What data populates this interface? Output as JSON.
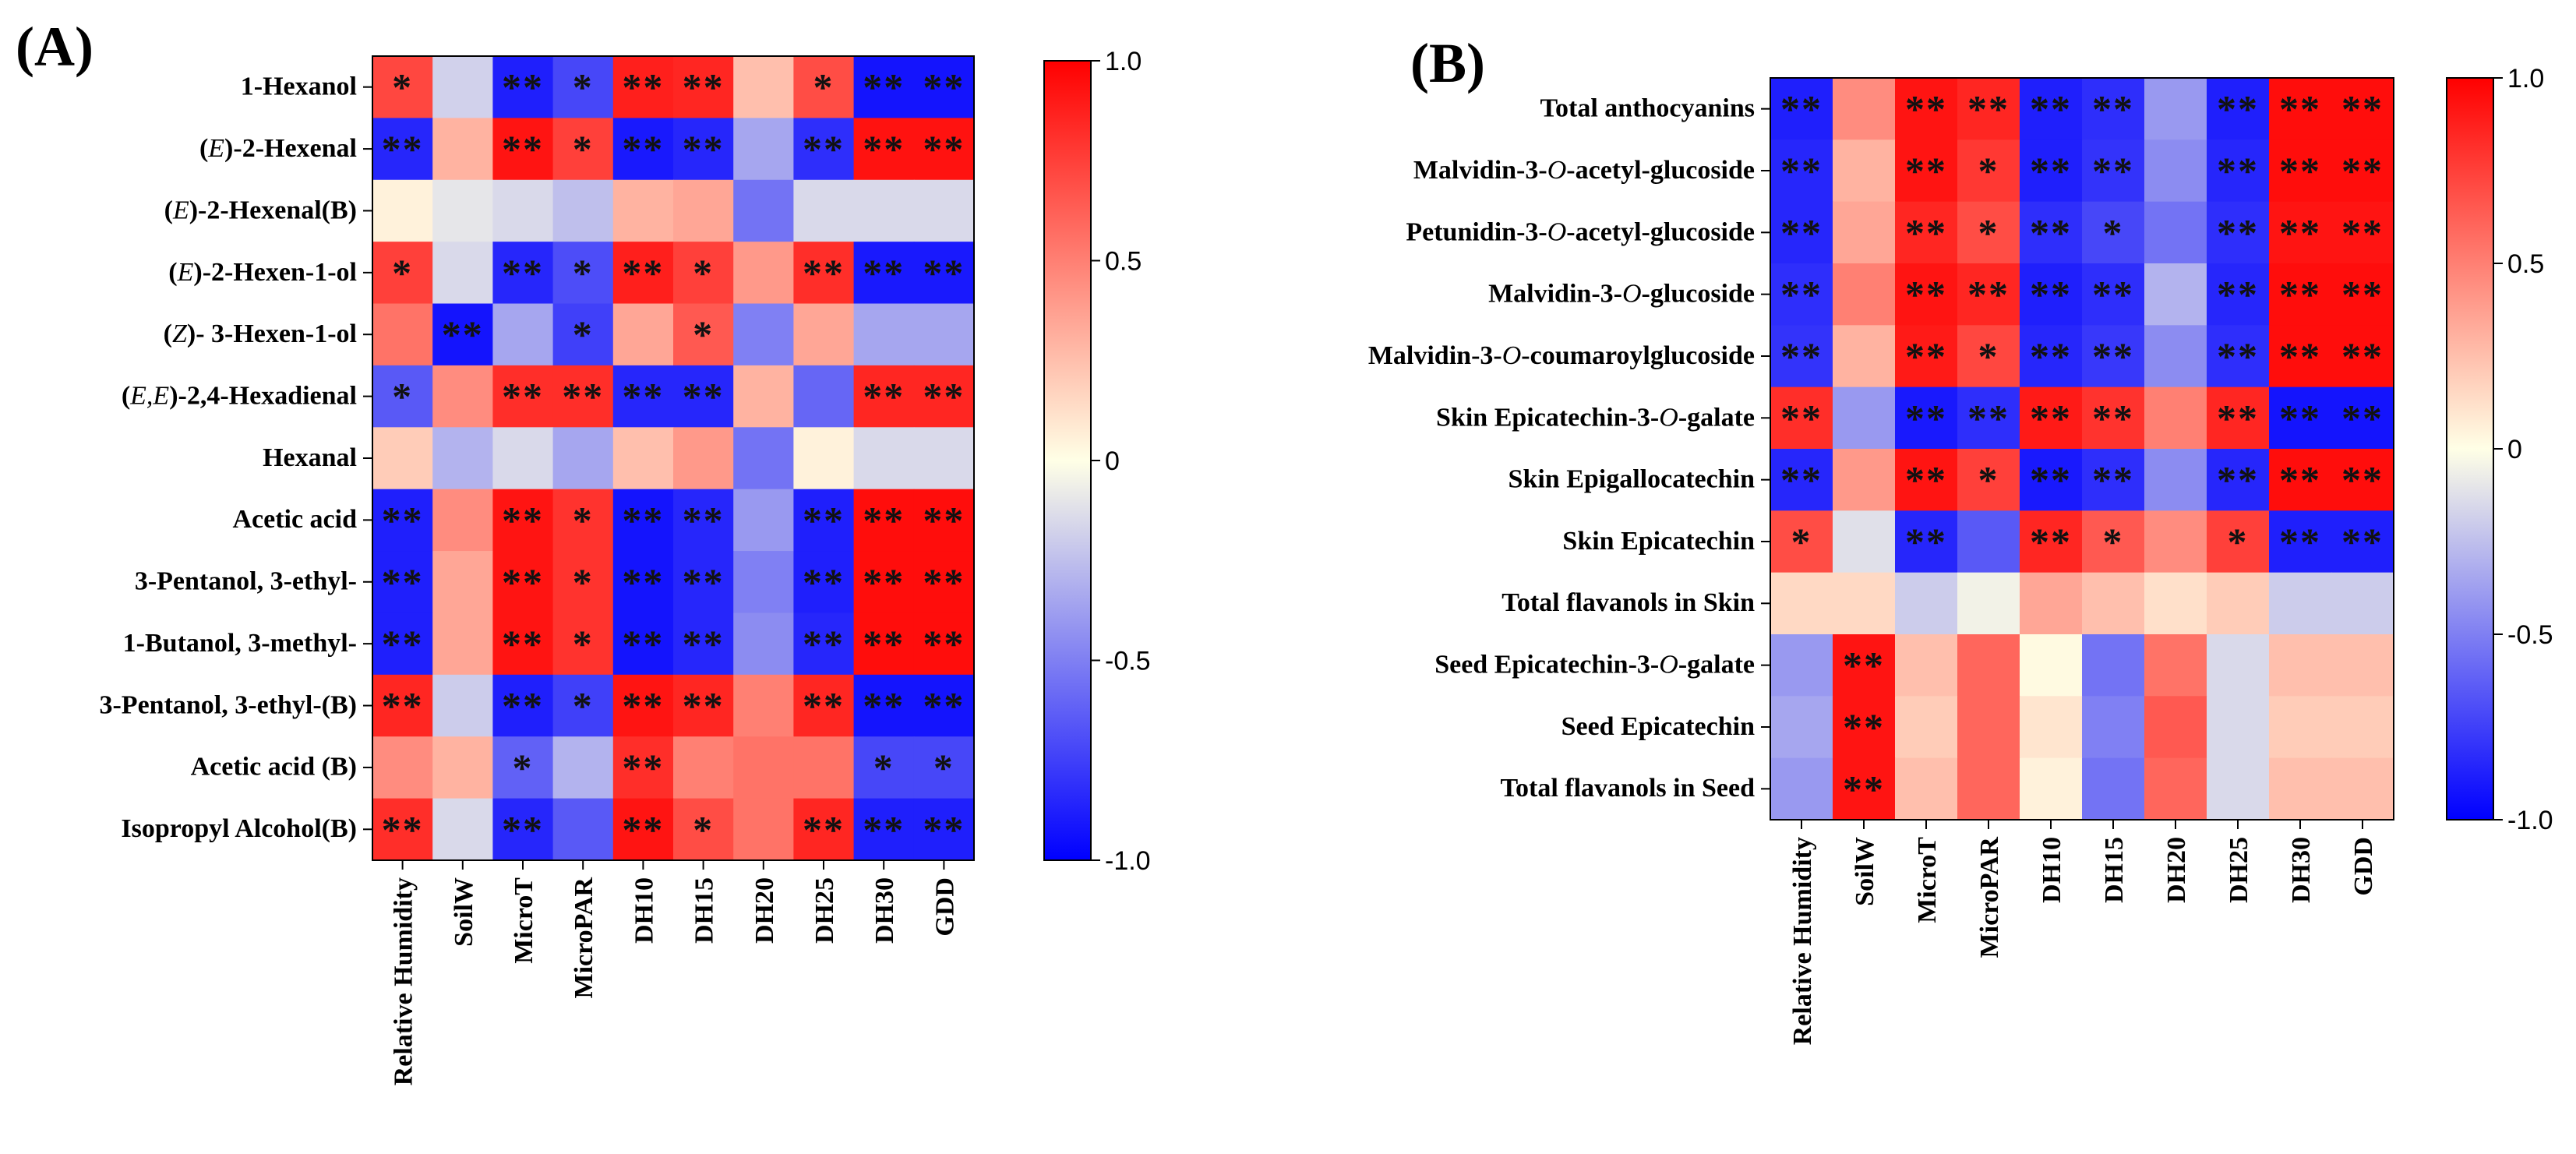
{
  "chart_data": [
    {
      "type": "heatmap",
      "panel": "(A)",
      "rows": [
        "1-Hexanol",
        "(E)-2-Hexenal",
        "(E)-2-Hexenal(B)",
        "(E)-2-Hexen-1-ol",
        "(Z)- 3-Hexen-1-ol",
        "(E,E)-2,4-Hexadienal",
        "Hexanal",
        "Acetic acid",
        "3-Pentanol, 3-ethyl-",
        "1-Butanol, 3-methyl-",
        "3-Pentanol, 3-ethyl-(B)",
        "Acetic acid (B)",
        "Isopropyl Alcohol(B)"
      ],
      "italic_prefix": [
        "",
        "E",
        "E",
        "E",
        "Z",
        "E,E",
        "",
        "",
        "",
        "",
        "",
        "",
        ""
      ],
      "columns": [
        "Relative Humidity",
        "SoilW",
        "MicroT",
        "MicroPAR",
        "DH10",
        "DH15",
        "DH20",
        "DH25",
        "DH30",
        "GDD"
      ],
      "values": [
        [
          0.72,
          -0.18,
          -0.88,
          -0.72,
          0.88,
          0.85,
          0.25,
          0.7,
          -0.92,
          -0.92
        ],
        [
          -0.85,
          0.3,
          0.92,
          0.75,
          -0.9,
          -0.85,
          -0.35,
          -0.82,
          0.93,
          0.93
        ],
        [
          0.05,
          -0.1,
          -0.15,
          -0.25,
          0.3,
          0.35,
          -0.55,
          -0.15,
          -0.15,
          -0.15
        ],
        [
          0.75,
          -0.15,
          -0.85,
          -0.7,
          0.88,
          0.75,
          0.4,
          0.82,
          -0.9,
          -0.9
        ],
        [
          0.55,
          -0.92,
          -0.35,
          -0.75,
          0.35,
          0.65,
          -0.5,
          0.35,
          -0.35,
          -0.35
        ],
        [
          -0.65,
          0.45,
          0.82,
          0.82,
          -0.85,
          -0.85,
          0.3,
          -0.6,
          0.85,
          0.85
        ],
        [
          0.2,
          -0.3,
          -0.15,
          -0.35,
          0.25,
          0.4,
          -0.55,
          0.05,
          -0.15,
          -0.15
        ],
        [
          -0.88,
          0.45,
          0.92,
          0.8,
          -0.92,
          -0.85,
          -0.4,
          -0.88,
          0.95,
          0.95
        ],
        [
          -0.88,
          0.35,
          0.92,
          0.8,
          -0.92,
          -0.85,
          -0.5,
          -0.88,
          0.95,
          0.95
        ],
        [
          -0.88,
          0.35,
          0.92,
          0.8,
          -0.92,
          -0.85,
          -0.45,
          -0.85,
          0.95,
          0.95
        ],
        [
          0.85,
          -0.2,
          -0.88,
          -0.75,
          0.92,
          0.85,
          0.5,
          0.85,
          -0.92,
          -0.92
        ],
        [
          0.45,
          0.3,
          -0.62,
          -0.3,
          0.82,
          0.5,
          0.55,
          0.55,
          -0.72,
          -0.72
        ],
        [
          0.82,
          -0.15,
          -0.85,
          -0.65,
          0.92,
          0.7,
          0.55,
          0.85,
          -0.88,
          -0.88
        ]
      ],
      "significance": [
        [
          "*",
          "",
          "**",
          "*",
          "**",
          "**",
          "",
          "*",
          "**",
          "**"
        ],
        [
          "**",
          "",
          "**",
          "*",
          "**",
          "**",
          "",
          "**",
          "**",
          "**"
        ],
        [
          "",
          "",
          "",
          "",
          "",
          "",
          "",
          "",
          "",
          ""
        ],
        [
          "*",
          "",
          "**",
          "*",
          "**",
          "*",
          "",
          "**",
          "**",
          "**"
        ],
        [
          "",
          "**",
          "",
          "*",
          "",
          "*",
          "",
          "",
          "",
          ""
        ],
        [
          "*",
          "",
          "**",
          "**",
          "**",
          "**",
          "",
          "",
          "**",
          "**"
        ],
        [
          "",
          "",
          "",
          "",
          "",
          "",
          "",
          "",
          "",
          ""
        ],
        [
          "**",
          "",
          "**",
          "*",
          "**",
          "**",
          "",
          "**",
          "**",
          "**"
        ],
        [
          "**",
          "",
          "**",
          "*",
          "**",
          "**",
          "",
          "**",
          "**",
          "**"
        ],
        [
          "**",
          "",
          "**",
          "*",
          "**",
          "**",
          "",
          "**",
          "**",
          "**"
        ],
        [
          "**",
          "",
          "**",
          "*",
          "**",
          "**",
          "",
          "**",
          "**",
          "**"
        ],
        [
          "",
          "",
          "*",
          "",
          "**",
          "",
          "",
          "",
          "*",
          "*"
        ],
        [
          "**",
          "",
          "**",
          "",
          "**",
          "*",
          "",
          "**",
          "**",
          "**"
        ]
      ],
      "colorbar": {
        "range": [
          -1.0,
          1.0
        ],
        "ticks": [
          "1.0",
          "0.5",
          "0",
          "-0.5",
          "-1.0"
        ],
        "low_color": "#0000ff",
        "mid_color": "#ffffe6",
        "high_color": "#ff0000"
      }
    },
    {
      "type": "heatmap",
      "panel": "(B)",
      "rows": [
        "Total anthocyanins",
        "Malvidin-3-O-acetyl-glucoside",
        "Petunidin-3-O-acetyl-glucoside",
        "Malvidin-3-O-glucoside",
        "Malvidin-3-O-coumaroylglucoside",
        "Skin Epicatechin-3-O-galate",
        "Skin Epigallocatechin",
        "Skin Epicatechin",
        "Total flavanols in Skin",
        "Seed Epicatechin-3-O-galate",
        "Seed Epicatechin",
        "Total flavanols in Seed"
      ],
      "italic_letter": [
        "",
        "O",
        "O",
        "O",
        "O",
        "O",
        "",
        "",
        "",
        "O",
        "",
        ""
      ],
      "columns": [
        "Relative Humidity",
        "SoilW",
        "MicroT",
        "MicroPAR",
        "DH10",
        "DH15",
        "DH20",
        "DH25",
        "DH30",
        "GDD"
      ],
      "values": [
        [
          -0.88,
          0.45,
          0.92,
          0.85,
          -0.88,
          -0.82,
          -0.4,
          -0.88,
          0.95,
          0.95
        ],
        [
          -0.85,
          0.3,
          0.92,
          0.78,
          -0.88,
          -0.8,
          -0.45,
          -0.85,
          0.95,
          0.95
        ],
        [
          -0.85,
          0.35,
          0.85,
          0.7,
          -0.82,
          -0.72,
          -0.55,
          -0.82,
          0.92,
          0.92
        ],
        [
          -0.82,
          0.5,
          0.92,
          0.85,
          -0.88,
          -0.82,
          -0.3,
          -0.85,
          0.95,
          0.95
        ],
        [
          -0.8,
          0.3,
          0.9,
          0.72,
          -0.85,
          -0.78,
          -0.45,
          -0.82,
          0.95,
          0.95
        ],
        [
          0.82,
          -0.4,
          -0.9,
          -0.82,
          0.9,
          0.8,
          0.5,
          0.85,
          -0.92,
          -0.92
        ],
        [
          -0.85,
          0.4,
          0.92,
          0.75,
          -0.9,
          -0.82,
          -0.45,
          -0.85,
          0.95,
          0.95
        ],
        [
          0.7,
          -0.12,
          -0.85,
          -0.65,
          0.85,
          0.65,
          0.45,
          0.75,
          -0.88,
          -0.88
        ],
        [
          0.15,
          0.15,
          -0.2,
          -0.05,
          0.35,
          0.25,
          0.12,
          0.2,
          -0.2,
          -0.2
        ],
        [
          -0.4,
          0.92,
          0.25,
          0.6,
          0.02,
          -0.55,
          0.55,
          -0.15,
          0.25,
          0.25
        ],
        [
          -0.35,
          0.92,
          0.2,
          0.6,
          0.1,
          -0.5,
          0.65,
          -0.15,
          0.2,
          0.2
        ],
        [
          -0.4,
          0.92,
          0.25,
          0.6,
          0.05,
          -0.55,
          0.6,
          -0.15,
          0.25,
          0.25
        ]
      ],
      "significance": [
        [
          "**",
          "",
          "**",
          "**",
          "**",
          "**",
          "",
          "**",
          "**",
          "**"
        ],
        [
          "**",
          "",
          "**",
          "*",
          "**",
          "**",
          "",
          "**",
          "**",
          "**"
        ],
        [
          "**",
          "",
          "**",
          "*",
          "**",
          "*",
          "",
          "**",
          "**",
          "**"
        ],
        [
          "**",
          "",
          "**",
          "**",
          "**",
          "**",
          "",
          "**",
          "**",
          "**"
        ],
        [
          "**",
          "",
          "**",
          "*",
          "**",
          "**",
          "",
          "**",
          "**",
          "**"
        ],
        [
          "**",
          "",
          "**",
          "**",
          "**",
          "**",
          "",
          "**",
          "**",
          "**"
        ],
        [
          "**",
          "",
          "**",
          "*",
          "**",
          "**",
          "",
          "**",
          "**",
          "**"
        ],
        [
          "*",
          "",
          "**",
          "",
          "**",
          "*",
          "",
          "*",
          "**",
          "**"
        ],
        [
          "",
          "",
          "",
          "",
          "",
          "",
          "",
          "",
          "",
          ""
        ],
        [
          "",
          "**",
          "",
          "",
          "",
          "",
          "",
          "",
          "",
          ""
        ],
        [
          "",
          "**",
          "",
          "",
          "",
          "",
          "",
          "",
          "",
          ""
        ],
        [
          "",
          "**",
          "",
          "",
          "",
          "",
          "",
          "",
          "",
          ""
        ]
      ],
      "colorbar": {
        "range": [
          -1.0,
          1.0
        ],
        "ticks": [
          "1.0",
          "0.5",
          "0",
          "-0.5",
          "-1.0"
        ],
        "low_color": "#0000ff",
        "mid_color": "#ffffe6",
        "high_color": "#ff0000"
      }
    }
  ]
}
